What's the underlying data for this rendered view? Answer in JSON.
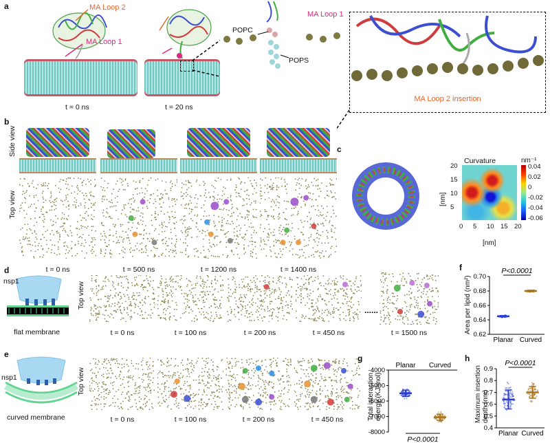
{
  "panels": {
    "a": {
      "label": "a",
      "ma_loop2": "MA Loop 2",
      "ma_loop1": "MA Loop 1",
      "ma_loop1_zoom": "MA Loop 1",
      "popc": "POPC",
      "pops": "POPS",
      "insertion": "MA Loop 2 insertion",
      "times": [
        "t = 0 ns",
        "t = 20 ns"
      ]
    },
    "b": {
      "label": "b",
      "side_view": "Side view",
      "top_view": "Top view",
      "times": [
        "t = 0 ns",
        "t = 500 ns",
        "t = 1200 ns",
        "t = 1400 ns"
      ]
    },
    "c": {
      "label": "c",
      "curvature_title": "Curvature",
      "unit": "nm⁻¹",
      "ylabel": "[nm]",
      "xlabel": "[nm]",
      "ticks_x": [
        "0",
        "5",
        "10",
        "15",
        "20"
      ],
      "ticks_y": [
        "20",
        "15",
        "10",
        "5"
      ],
      "colorbar_ticks": [
        "0.04",
        "0.02",
        "0",
        "-0.02",
        "-0.04",
        "-0.06"
      ]
    },
    "d": {
      "label": "d",
      "nsp1": "nsp1",
      "membrane": "flat membrane",
      "top_view": "Top view",
      "times": [
        "t = 0 ns",
        "t = 100 ns",
        "t = 200 ns",
        "t = 450 ns",
        "t = 1500 ns"
      ],
      "ellipsis": "......"
    },
    "e": {
      "label": "e",
      "nsp1": "nsp1",
      "membrane": "curved membrane",
      "top_view": "Top view",
      "times": [
        "t = 0 ns",
        "t = 100 ns",
        "t = 200 ns",
        "t = 450 ns"
      ]
    },
    "f": {
      "label": "f",
      "pvalue": "P<0.0001",
      "ylabel": "Area per lipid (nm²)",
      "categories": [
        "Planar",
        "Curved"
      ]
    },
    "g": {
      "label": "g",
      "pvalue": "P<0.0001",
      "ylabel": "Total interaction energy (KJ/mol)",
      "categories": [
        "Planar",
        "Curved"
      ]
    },
    "h": {
      "label": "h",
      "pvalue": "P<0.0001",
      "ylabel": "Maximum insertion depth (nm)",
      "categories": [
        "Planar",
        "Curved"
      ]
    }
  },
  "chart_data": [
    {
      "id": "f",
      "type": "scatter",
      "categories": [
        "Planar",
        "Curved"
      ],
      "ylabel": "Area per lipid (nm²)",
      "ylim": [
        0.62,
        0.7
      ],
      "yticks": [
        0.62,
        0.63,
        0.64,
        0.65,
        0.66,
        0.67,
        0.68,
        0.69,
        0.7
      ],
      "series": [
        {
          "name": "Planar",
          "mean": 0.645,
          "sd": 0.001,
          "color": "#2a3fcf"
        },
        {
          "name": "Curved",
          "mean": 0.68,
          "sd": 0.001,
          "color": "#a9741a"
        }
      ]
    },
    {
      "id": "g",
      "type": "scatter",
      "categories": [
        "Planar",
        "Curved"
      ],
      "ylabel": "Total interaction energy (KJ/mol)",
      "ylim": [
        -8000,
        -4000
      ],
      "yticks": [
        -4000,
        -5000,
        -6000,
        -7000,
        -8000
      ],
      "series": [
        {
          "name": "Planar",
          "mean": -5500,
          "sd": 200,
          "color": "#2a3fcf"
        },
        {
          "name": "Curved",
          "mean": -7050,
          "sd": 200,
          "color": "#a9741a"
        }
      ]
    },
    {
      "id": "h",
      "type": "scatter",
      "categories": [
        "Planar",
        "Curved"
      ],
      "ylabel": "Maximum insertion depth (nm)",
      "ylim": [
        0.4,
        0.9
      ],
      "yticks": [
        0.4,
        0.5,
        0.6,
        0.7,
        0.8,
        0.9
      ],
      "series": [
        {
          "name": "Planar",
          "mean": 0.64,
          "sd": 0.08,
          "color": "#2a3fcf"
        },
        {
          "name": "Curved",
          "mean": 0.7,
          "sd": 0.05,
          "color": "#a9741a"
        }
      ]
    }
  ],
  "colors": {
    "label_orange": "#e8662c",
    "label_magenta": "#e0277b",
    "lipid_head": "#8a8550",
    "membrane_teal": "#5fc5c0"
  }
}
